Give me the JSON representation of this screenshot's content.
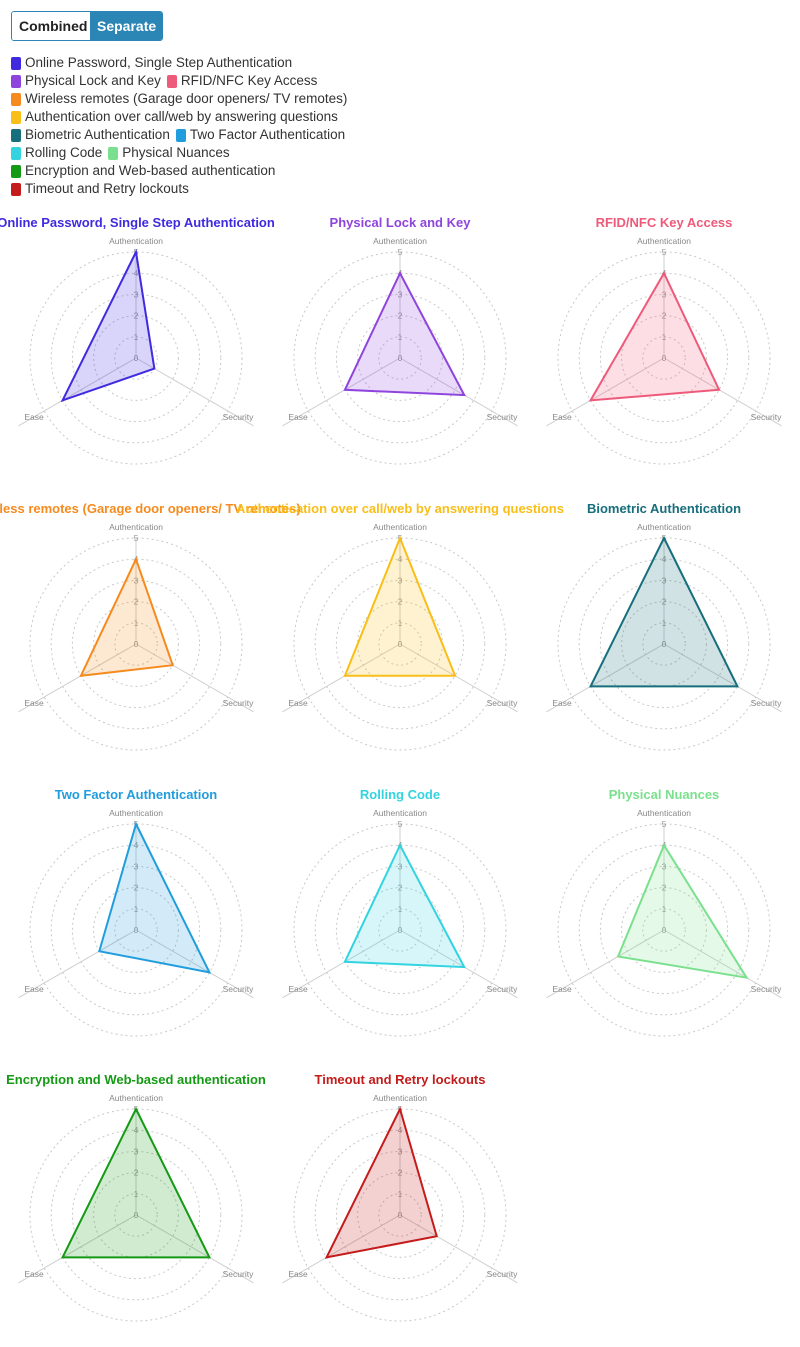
{
  "toggle": {
    "combined_label": "Combined",
    "separate_label": "Separate",
    "active": "Separate"
  },
  "legend_rows": [
    [
      0
    ],
    [
      1,
      2
    ],
    [
      3
    ],
    [
      4
    ],
    [
      5,
      6
    ],
    [
      7,
      8
    ],
    [
      9
    ],
    [
      10
    ]
  ],
  "chart_data": {
    "type": "radar",
    "axes": [
      "Authentication",
      "Security",
      "Ease"
    ],
    "range": [
      0,
      5
    ],
    "ticks": [
      0,
      1,
      2,
      3,
      4,
      5
    ],
    "series": [
      {
        "name": "Online Password, Single Step Authentication",
        "color": "#3f2ae0",
        "values": [
          5,
          1,
          4
        ]
      },
      {
        "name": "Physical Lock and Key",
        "color": "#8e44dd",
        "values": [
          4,
          3.5,
          3
        ]
      },
      {
        "name": "RFID/NFC Key Access",
        "color": "#ee5a7a",
        "values": [
          4,
          3,
          4
        ]
      },
      {
        "name": "Wireless remotes (Garage door openers/ TV remotes)",
        "color": "#f58b1f",
        "values": [
          4,
          2,
          3
        ]
      },
      {
        "name": "Authentication over call/web by answering questions",
        "color": "#f9be17",
        "values": [
          5,
          3,
          3
        ]
      },
      {
        "name": "Biometric Authentication",
        "color": "#176e7c",
        "values": [
          5,
          4,
          4
        ]
      },
      {
        "name": "Two Factor Authentication",
        "color": "#219dde",
        "values": [
          5,
          4,
          2
        ]
      },
      {
        "name": "Rolling Code",
        "color": "#33d3e0",
        "values": [
          4,
          3.5,
          3
        ]
      },
      {
        "name": "Physical Nuances",
        "color": "#7be08e",
        "values": [
          4,
          4.5,
          2.5
        ]
      },
      {
        "name": "Encryption and Web-based authentication",
        "color": "#159a15",
        "values": [
          5,
          4,
          4
        ]
      },
      {
        "name": "Timeout and Retry lockouts",
        "color": "#c41b1b",
        "values": [
          5,
          2,
          4
        ]
      }
    ]
  }
}
